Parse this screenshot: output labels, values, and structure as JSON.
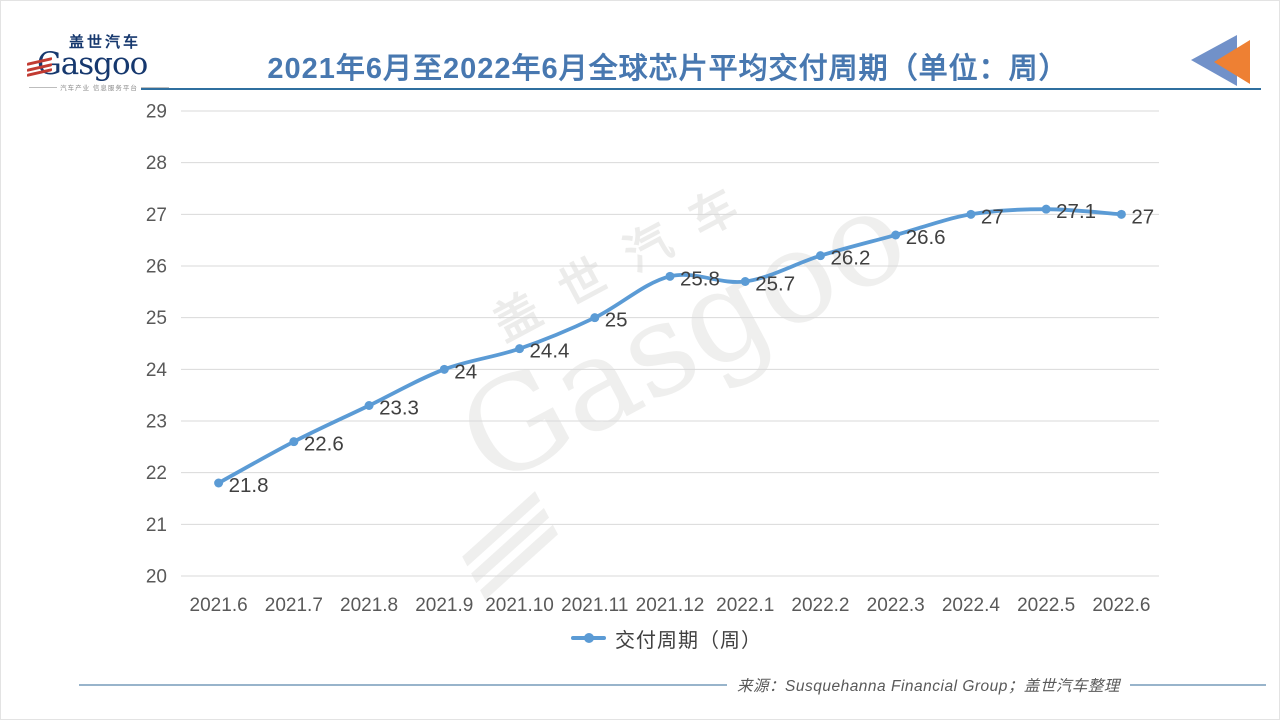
{
  "logo": {
    "cn": "盖世汽车",
    "en": "Gasgoo",
    "tagline": "汽车产业 信息服务平台"
  },
  "header": {
    "title": "2021年6月至2022年6月全球芯片平均交付周期（单位：周）"
  },
  "chart_data": {
    "type": "line",
    "title": "2021年6月至2022年6月全球芯片平均交付周期（单位：周）",
    "categories": [
      "2021.6",
      "2021.7",
      "2021.8",
      "2021.9",
      "2021.10",
      "2021.11",
      "2021.12",
      "2022.1",
      "2022.2",
      "2022.3",
      "2022.4",
      "2022.5",
      "2022.6"
    ],
    "series": [
      {
        "name": "交付周期（周）",
        "values": [
          21.8,
          22.6,
          23.3,
          24,
          24.4,
          25,
          25.8,
          25.7,
          26.2,
          26.6,
          27,
          27.1,
          27
        ]
      }
    ],
    "ylim": [
      20,
      29
    ],
    "ytick_step": 1,
    "xlabel": "",
    "ylabel": "",
    "grid": "horizontal-only",
    "legend_position": "bottom",
    "marker": "circle",
    "smooth": true
  },
  "legend": {
    "label": "交付周期（周）"
  },
  "source": {
    "text": "来源：Susquehanna Financial Group；盖世汽车整理"
  },
  "watermark": {
    "cn": "盖世汽车",
    "en": "Gasgoo"
  },
  "colors": {
    "line": "#5b9bd5",
    "title_text": "#4878b0",
    "title_rule": "#2f6f9f",
    "gridline": "#d9d9d9",
    "axis_text": "#595959",
    "data_label": "#404040",
    "source_text": "#595959",
    "logo_navy": "#16386e",
    "logo_red": "#c23b32",
    "icon_blue": "#7191c9",
    "icon_orange": "#ee8033",
    "bottom_rule": "#86a7c2"
  }
}
